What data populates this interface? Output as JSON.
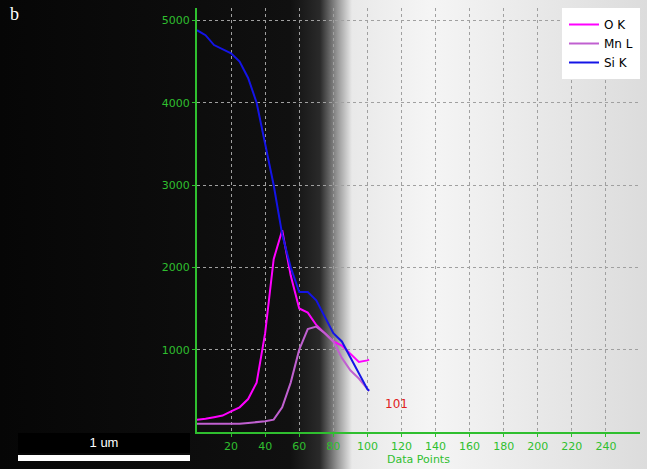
{
  "chart_data": {
    "type": "line",
    "panel_label": "b",
    "scale_bar": "1 um",
    "annotations": [
      "101"
    ],
    "x_label": "Data Points",
    "x": [
      0,
      5,
      10,
      15,
      20,
      25,
      30,
      35,
      40,
      45,
      50,
      55,
      60,
      65,
      70,
      75,
      80,
      85,
      90,
      95,
      100,
      101
    ],
    "series": [
      {
        "name": "O K",
        "color": "#ff00ff",
        "values": [
          150,
          160,
          180,
          200,
          250,
          300,
          400,
          600,
          1200,
          2100,
          2450,
          1900,
          1500,
          1450,
          1300,
          1200,
          1100,
          1050,
          950,
          850,
          870,
          880
        ]
      },
      {
        "name": "Mn L",
        "color": "#c060d0",
        "values": [
          100,
          100,
          100,
          100,
          100,
          100,
          110,
          120,
          130,
          150,
          300,
          600,
          1000,
          1250,
          1280,
          1200,
          1100,
          900,
          750,
          650,
          520,
          500
        ]
      },
      {
        "name": "Si K",
        "color": "#1414e6",
        "values": [
          4880,
          4820,
          4700,
          4650,
          4600,
          4500,
          4300,
          4000,
          3500,
          3000,
          2400,
          2000,
          1700,
          1700,
          1600,
          1400,
          1200,
          1100,
          900,
          700,
          520,
          500
        ]
      }
    ],
    "xlim": [
      0,
      260
    ],
    "xticks": [
      20,
      40,
      60,
      80,
      100,
      120,
      140,
      160,
      180,
      200,
      220,
      240
    ],
    "ylim": [
      0,
      5150
    ],
    "yticks": [
      1000,
      2000,
      3000,
      4000,
      5000
    ],
    "grid": true,
    "legend": "top right"
  }
}
